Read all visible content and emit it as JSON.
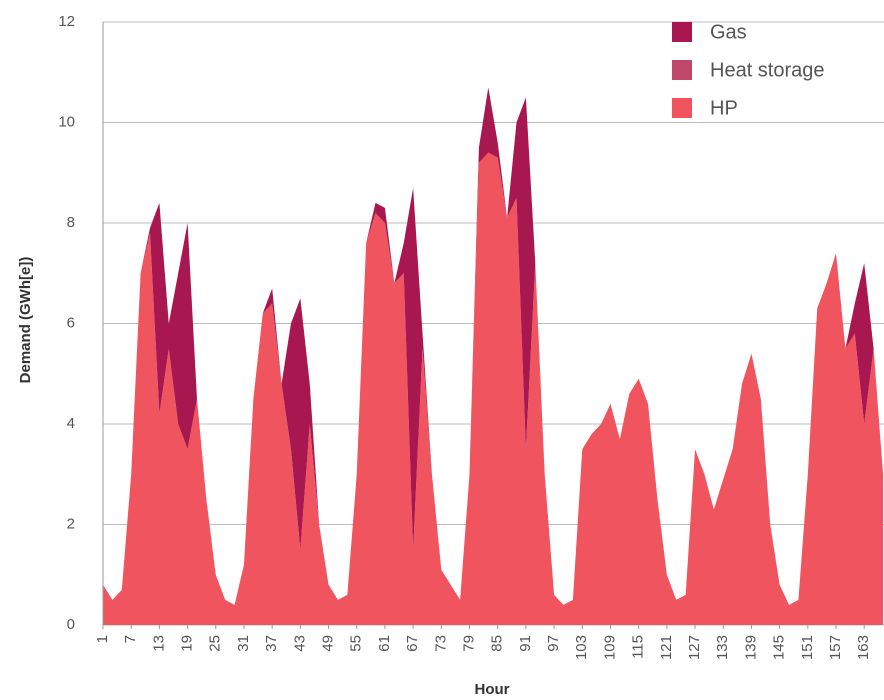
{
  "chart_data": {
    "type": "stacked_area",
    "x_label": "Hour",
    "y_label": "Demand (GWh[e])",
    "x": [
      1,
      3,
      5,
      7,
      9,
      11,
      13,
      15,
      17,
      19,
      21,
      23,
      25,
      27,
      29,
      31,
      33,
      35,
      37,
      39,
      41,
      43,
      45,
      47,
      49,
      51,
      53,
      55,
      57,
      59,
      61,
      63,
      65,
      67,
      69,
      71,
      73,
      75,
      77,
      79,
      81,
      83,
      85,
      87,
      89,
      91,
      93,
      95,
      97,
      99,
      101,
      103,
      105,
      107,
      109,
      111,
      113,
      115,
      117,
      119,
      121,
      123,
      125,
      127,
      129,
      131,
      133,
      135,
      137,
      139,
      141,
      143,
      145,
      147,
      149,
      151,
      153,
      155,
      157,
      159,
      161,
      163,
      165,
      167
    ],
    "series": [
      {
        "name": "HP",
        "color": "#f0555f",
        "values": [
          0.8,
          0.5,
          0.7,
          3.0,
          7.0,
          7.8,
          4.2,
          5.5,
          4.0,
          3.5,
          4.5,
          2.5,
          1.0,
          0.5,
          0.4,
          1.2,
          4.5,
          6.2,
          6.4,
          4.8,
          3.5,
          1.5,
          4.0,
          2.0,
          0.8,
          0.5,
          0.6,
          3.0,
          7.6,
          8.2,
          8.0,
          6.8,
          7.0,
          1.5,
          5.5,
          3.0,
          1.1,
          0.8,
          0.5,
          3.0,
          9.2,
          9.4,
          9.3,
          8.1,
          8.5,
          3.5,
          7.2,
          3.0,
          0.6,
          0.4,
          0.5,
          3.5,
          3.8,
          4.0,
          4.4,
          3.7,
          4.6,
          4.9,
          4.4,
          2.5,
          1.0,
          0.5,
          0.6,
          3.5,
          3.0,
          2.3,
          2.9,
          3.5,
          4.8,
          5.4,
          4.5,
          2.0,
          0.8,
          0.4,
          0.5,
          3.0,
          6.3,
          6.8,
          7.4,
          5.5,
          5.8,
          4.0,
          5.5,
          3.0
        ]
      },
      {
        "name": "Heat storage",
        "color": "#c0476a",
        "values": [
          0,
          0,
          0,
          0,
          0,
          0,
          0,
          0,
          0,
          0,
          0,
          0,
          0,
          0,
          0,
          0,
          0,
          0,
          0,
          0,
          0,
          0,
          0,
          0,
          0,
          0,
          0,
          0,
          0,
          0,
          0,
          0,
          0,
          0,
          0,
          0,
          0,
          0,
          0,
          0,
          0,
          0,
          0,
          0,
          0,
          0,
          0,
          0,
          0,
          0,
          0,
          0,
          0,
          0,
          0,
          0,
          0,
          0,
          0,
          0,
          0,
          0,
          0,
          0,
          0,
          0,
          0,
          0,
          0,
          0,
          0,
          0,
          0,
          0,
          0,
          0,
          0,
          0,
          0,
          0,
          0,
          0,
          0,
          0
        ]
      },
      {
        "name": "Gas",
        "color": "#a8174f",
        "values": [
          0,
          0,
          0,
          0,
          0,
          0.1,
          4.2,
          0.5,
          3.0,
          4.5,
          0,
          0,
          0,
          0,
          0,
          0,
          0,
          0,
          0.3,
          0,
          2.5,
          5.0,
          0.8,
          0,
          0,
          0,
          0,
          0,
          0,
          0.2,
          0.3,
          0,
          0.6,
          7.2,
          0.3,
          0,
          0,
          0,
          0,
          0,
          0.3,
          1.3,
          0.3,
          0,
          1.5,
          7.0,
          0,
          0,
          0,
          0,
          0,
          0,
          0,
          0,
          0,
          0,
          0,
          0,
          0,
          0,
          0,
          0,
          0,
          0,
          0,
          0,
          0,
          0,
          0,
          0,
          0,
          0,
          0,
          0,
          0,
          0,
          0,
          0,
          0,
          0,
          0.6,
          3.2,
          0,
          0
        ]
      }
    ],
    "xlim": [
      1,
      167
    ],
    "xticks": [
      1,
      7,
      13,
      19,
      25,
      31,
      37,
      43,
      49,
      55,
      61,
      67,
      73,
      79,
      85,
      91,
      97,
      103,
      109,
      115,
      121,
      127,
      133,
      139,
      145,
      151,
      157,
      163
    ],
    "ylim": [
      0,
      12
    ],
    "yticks": [
      0,
      2,
      4,
      6,
      8,
      10,
      12
    ],
    "grid": true,
    "legend": "top-right"
  }
}
